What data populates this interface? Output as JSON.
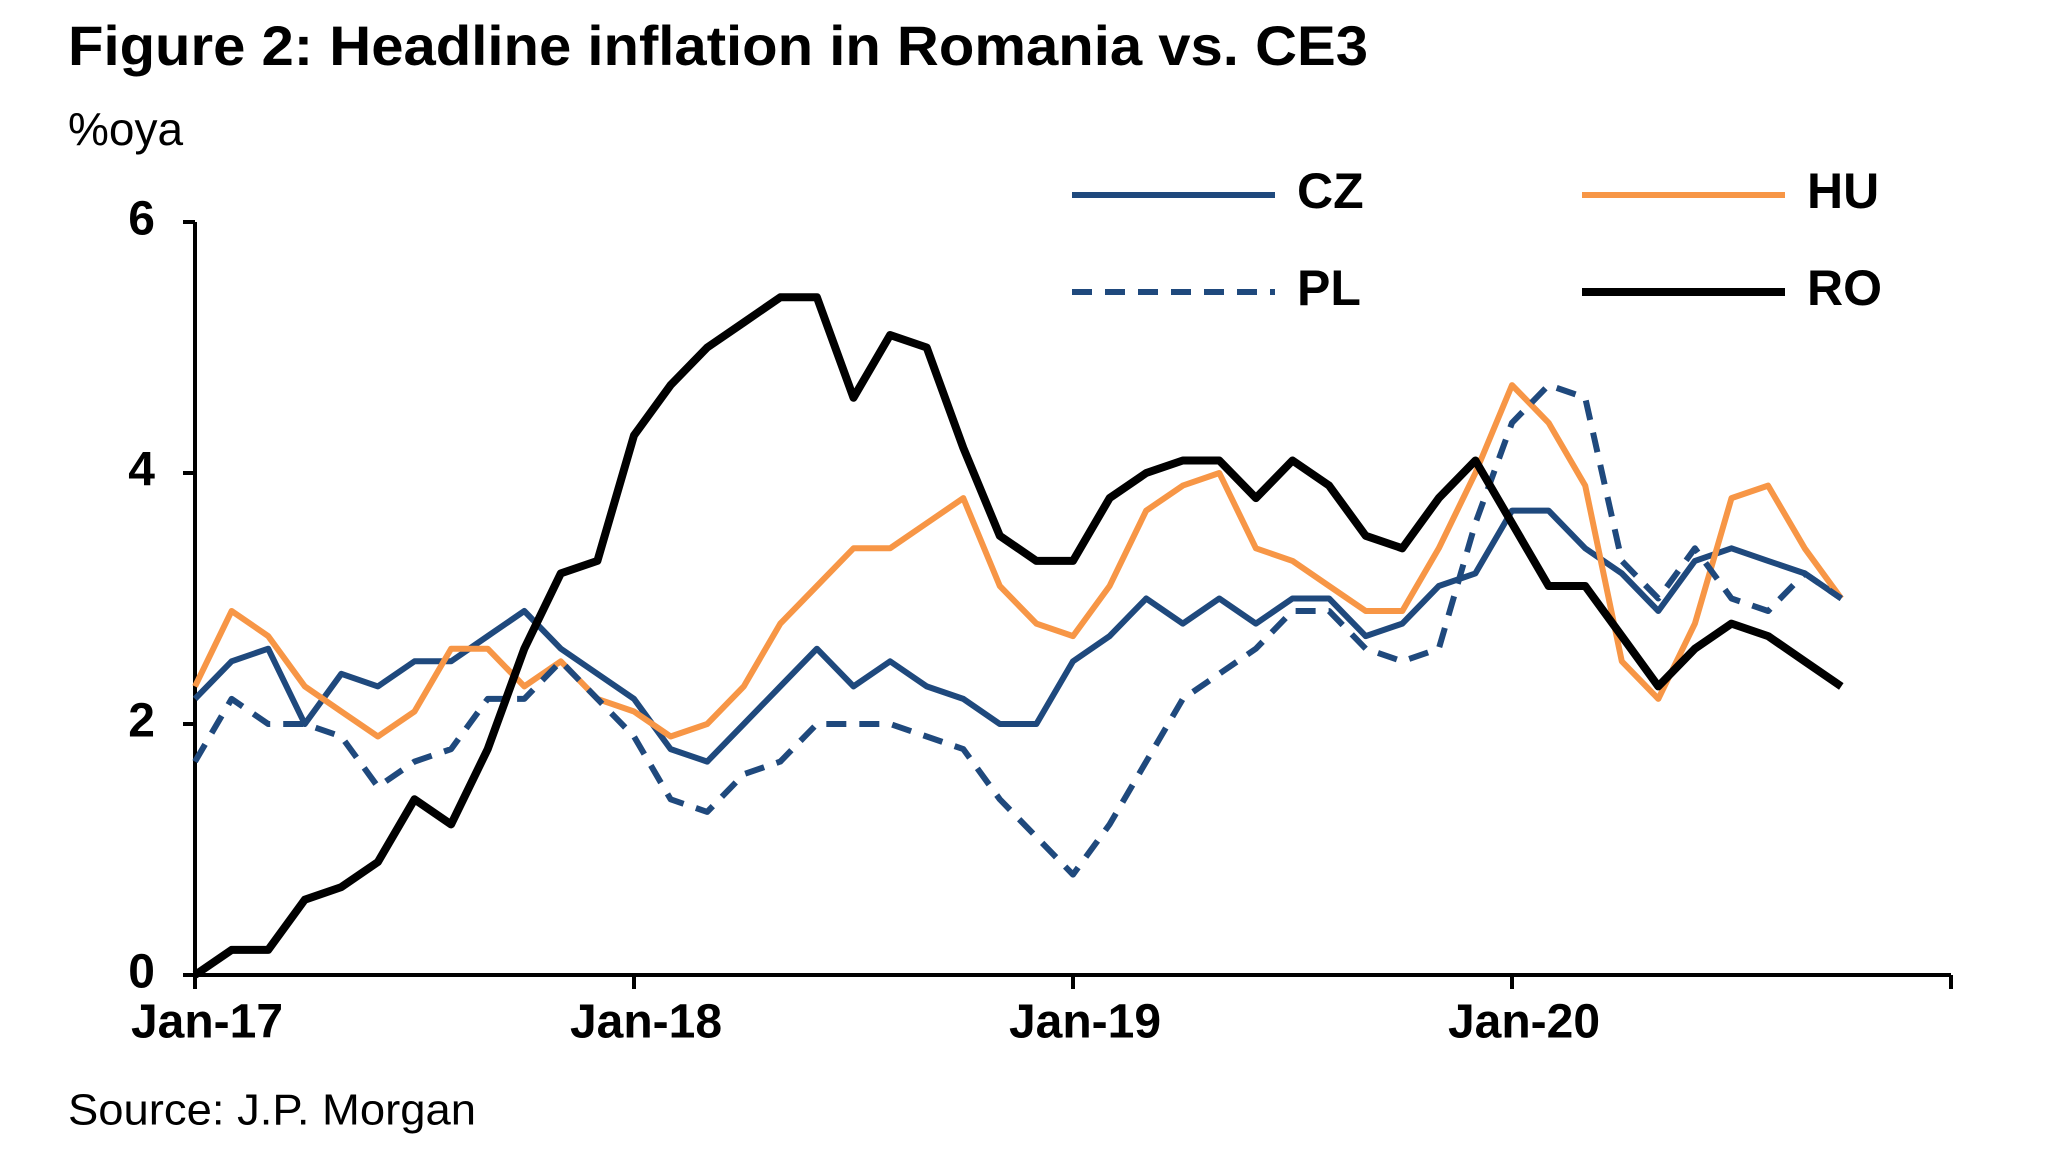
{
  "chart_data": {
    "type": "line",
    "title": "Figure 2: Headline inflation in Romania vs. CE3",
    "subtitle": "%oya",
    "source": "Source: J.P. Morgan",
    "categories": [
      "Jan-17",
      null,
      null,
      null,
      null,
      null,
      null,
      null,
      null,
      null,
      null,
      null,
      "Jan-18",
      null,
      null,
      null,
      null,
      null,
      null,
      null,
      null,
      null,
      null,
      null,
      "Jan-19",
      null,
      null,
      null,
      null,
      null,
      null,
      null,
      null,
      null,
      null,
      null,
      "Jan-20",
      null,
      null,
      null,
      null,
      null,
      null,
      null,
      null,
      null,
      null,
      null,
      null
    ],
    "series": [
      {
        "name": "CZ",
        "color": "#1f497d",
        "dash": false,
        "values": [
          2.2,
          2.5,
          2.6,
          2.0,
          2.4,
          2.3,
          2.5,
          2.5,
          2.7,
          2.9,
          2.6,
          2.4,
          2.2,
          1.8,
          1.7,
          2.0,
          2.3,
          2.6,
          2.3,
          2.5,
          2.3,
          2.2,
          2.0,
          2.0,
          2.5,
          2.7,
          3.0,
          2.8,
          3.0,
          2.8,
          3.0,
          3.0,
          2.7,
          2.8,
          3.1,
          3.2,
          3.7,
          3.7,
          3.4,
          3.2,
          2.9,
          3.3,
          3.4,
          3.3,
          3.2,
          3.0,
          null,
          null,
          null
        ]
      },
      {
        "name": "HU",
        "color": "#f79646",
        "dash": false,
        "values": [
          2.3,
          2.9,
          2.7,
          2.3,
          2.1,
          1.9,
          2.1,
          2.6,
          2.6,
          2.3,
          2.5,
          2.2,
          2.1,
          1.9,
          2.0,
          2.3,
          2.8,
          3.1,
          3.4,
          3.4,
          3.6,
          3.8,
          3.1,
          2.8,
          2.7,
          3.1,
          3.7,
          3.9,
          4.0,
          3.4,
          3.3,
          3.1,
          2.9,
          2.9,
          3.4,
          4.0,
          4.7,
          4.4,
          3.9,
          2.5,
          2.2,
          2.8,
          3.8,
          3.9,
          3.4,
          3.0,
          null,
          null,
          null
        ]
      },
      {
        "name": "PL",
        "color": "#1f497d",
        "dash": true,
        "values": [
          1.7,
          2.2,
          2.0,
          2.0,
          1.9,
          1.5,
          1.7,
          1.8,
          2.2,
          2.2,
          2.5,
          2.2,
          1.9,
          1.4,
          1.3,
          1.6,
          1.7,
          2.0,
          2.0,
          2.0,
          1.9,
          1.8,
          1.4,
          1.1,
          0.8,
          1.2,
          1.7,
          2.2,
          2.4,
          2.6,
          2.9,
          2.9,
          2.6,
          2.5,
          2.6,
          3.6,
          4.4,
          4.7,
          4.6,
          3.3,
          3.0,
          3.4,
          3.0,
          2.9,
          3.2,
          3.0,
          null,
          null,
          null
        ]
      },
      {
        "name": "RO",
        "color": "#000000",
        "dash": false,
        "values": [
          0.0,
          0.2,
          0.2,
          0.6,
          0.7,
          0.9,
          1.4,
          1.2,
          1.8,
          2.6,
          3.2,
          3.3,
          4.3,
          4.7,
          5.0,
          5.2,
          5.4,
          5.4,
          4.6,
          5.1,
          5.0,
          4.2,
          3.5,
          3.3,
          3.3,
          3.8,
          4.0,
          4.1,
          4.1,
          3.8,
          4.1,
          3.9,
          3.5,
          3.4,
          3.8,
          4.1,
          3.6,
          3.1,
          3.1,
          2.7,
          2.3,
          2.6,
          2.8,
          2.7,
          2.5,
          2.3,
          null,
          null,
          null
        ]
      }
    ],
    "ylim": [
      0,
      6
    ],
    "yticks": [
      0,
      2,
      4,
      6
    ]
  }
}
